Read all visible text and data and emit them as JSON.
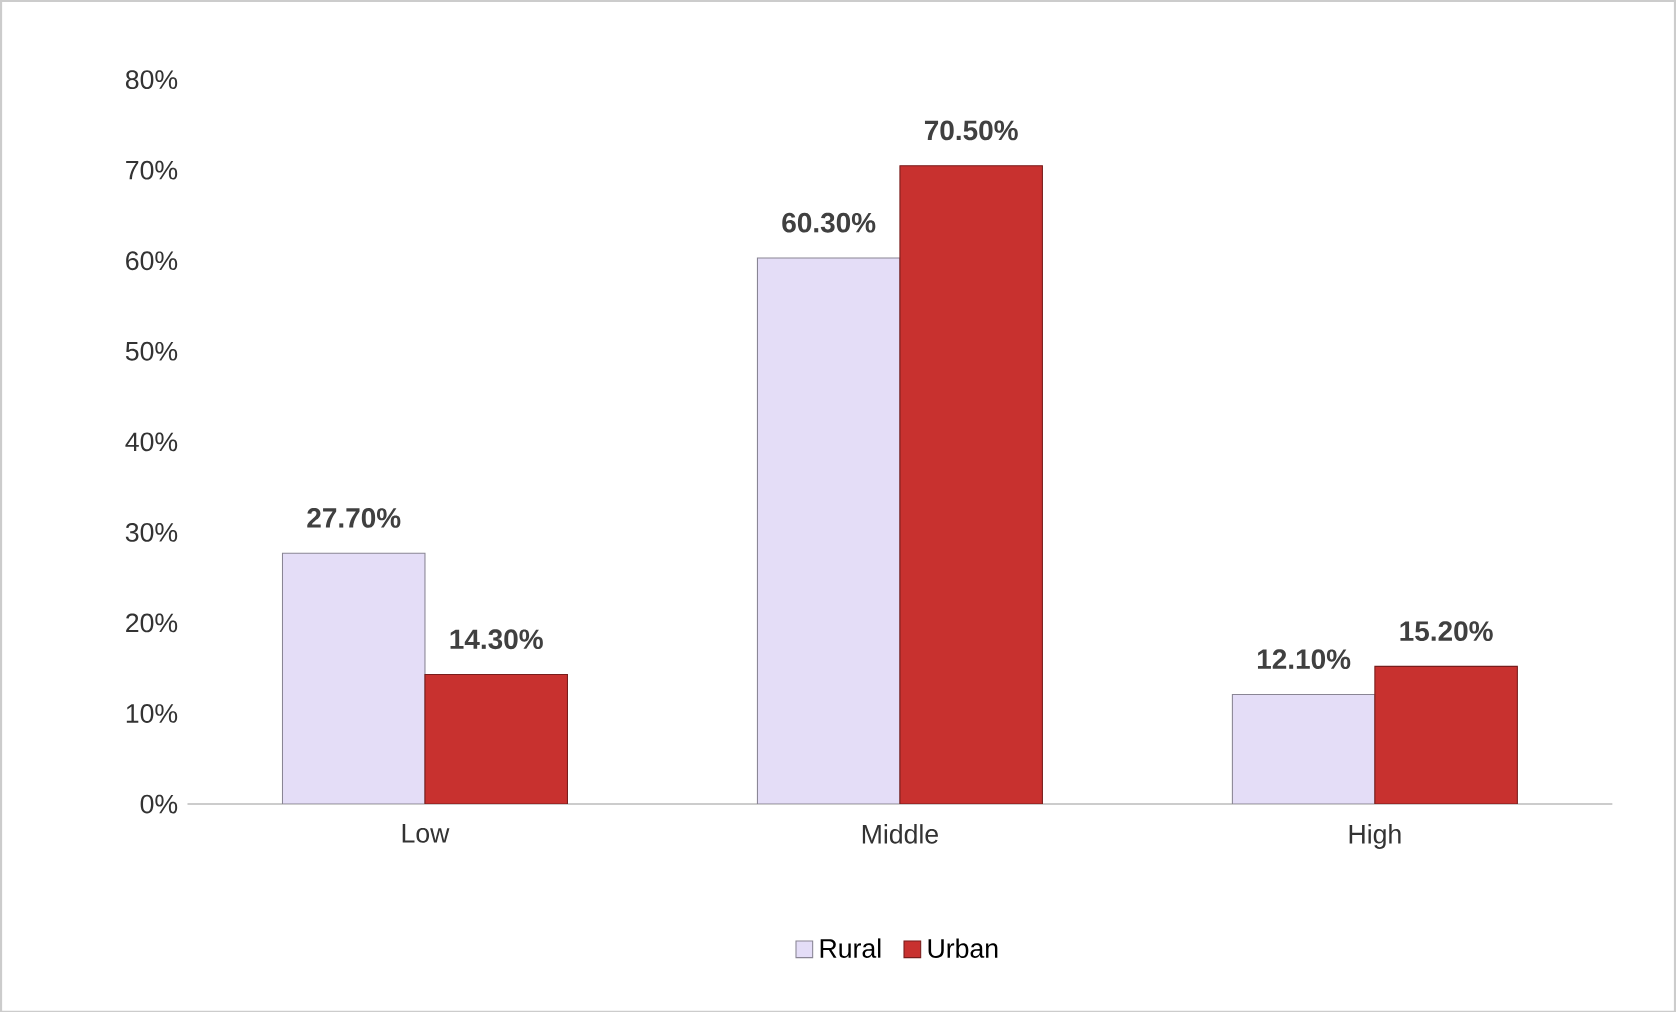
{
  "chart_data": {
    "type": "bar",
    "categories": [
      "Low",
      "Middle",
      "High"
    ],
    "series": [
      {
        "name": "Rural",
        "color": "#e4ddf7",
        "values": [
          27.7,
          60.3,
          12.1
        ],
        "value_labels": [
          "27.70%",
          "60.30%",
          "12.10%"
        ]
      },
      {
        "name": "Urban",
        "color": "#c8312f",
        "values": [
          14.3,
          70.5,
          15.2
        ],
        "value_labels": [
          "14.30%",
          "70.50%",
          "15.20%"
        ]
      }
    ],
    "ylim": [
      0,
      80
    ],
    "yticks": [
      {
        "value": 0,
        "label": "0%"
      },
      {
        "value": 10,
        "label": "10%"
      },
      {
        "value": 20,
        "label": "20%"
      },
      {
        "value": 30,
        "label": "30%"
      },
      {
        "value": 40,
        "label": "40%"
      },
      {
        "value": 50,
        "label": "50%"
      },
      {
        "value": 60,
        "label": "60%"
      },
      {
        "value": 70,
        "label": "70%"
      },
      {
        "value": 80,
        "label": "80%"
      }
    ],
    "grid": false,
    "legend": "bottom"
  }
}
